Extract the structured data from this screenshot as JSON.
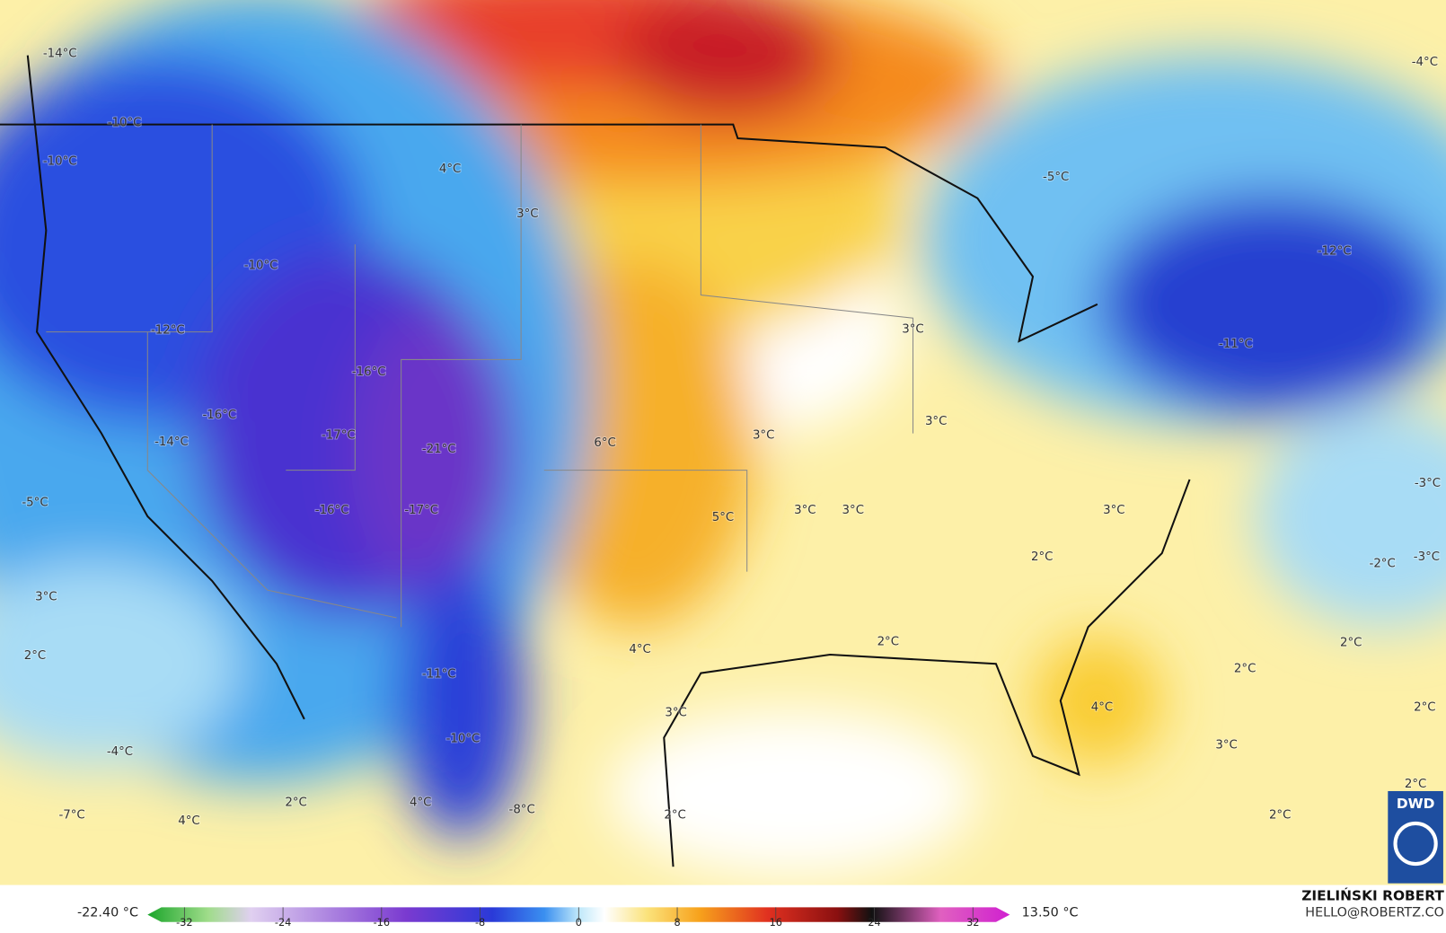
{
  "map": {
    "labels": [
      "-14°C",
      "-10°C",
      "-10°C",
      "4°C",
      "3°C",
      "-5°C",
      "-4°C",
      "-10°C",
      "-12°C",
      "-16°C",
      "-16°C",
      "-17°C",
      "-21°C",
      "-14°C",
      "-5°C",
      "-16°C",
      "-17°C",
      "6°C",
      "3°C",
      "3°C",
      "3°C",
      "-12°C",
      "-11°C",
      "5°C",
      "3°C",
      "3°C",
      "3°C",
      "-3°C",
      "-3°C",
      "-2°C",
      "2°C",
      "3°C",
      "2°C",
      "2°C",
      "4°C",
      "-11°C",
      "2°C",
      "2°C",
      "3°C",
      "4°C",
      "2°C",
      "-10°C",
      "-4°C",
      "3°C",
      "2°C",
      "4°C",
      "-7°C",
      "4°C",
      "-8°C",
      "2°C",
      "2°C",
      "2°C"
    ],
    "logo": "DWD"
  },
  "colorbar": {
    "ticks": [
      -32,
      -24,
      -16,
      -8,
      0,
      8,
      16,
      24,
      32
    ],
    "min_label": "-22.40 °C",
    "max_label": "13.50 °C"
  },
  "credit": {
    "name": "ZIELIŃSKI ROBERT",
    "email": "HELLO@ROBERTZ.CO"
  }
}
